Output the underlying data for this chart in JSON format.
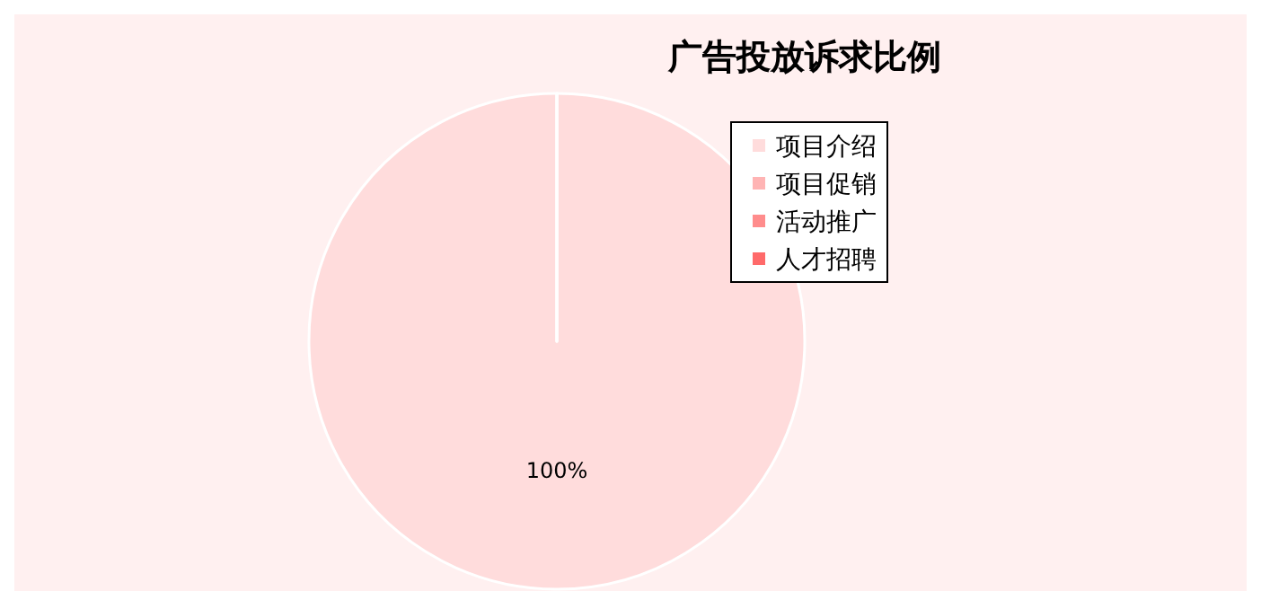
{
  "chart_data": {
    "type": "pie",
    "title": "广告投放诉求比例",
    "categories": [
      "项目介绍",
      "项目促销",
      "活动推广",
      "人才招聘"
    ],
    "values": [
      100,
      0,
      0,
      0
    ],
    "colors": [
      "#ffdcdc",
      "#ffb4b4",
      "#ff8c8c",
      "#ff6a6a"
    ],
    "value_labels": [
      "100%",
      null,
      null,
      null
    ],
    "legend": "top right"
  }
}
